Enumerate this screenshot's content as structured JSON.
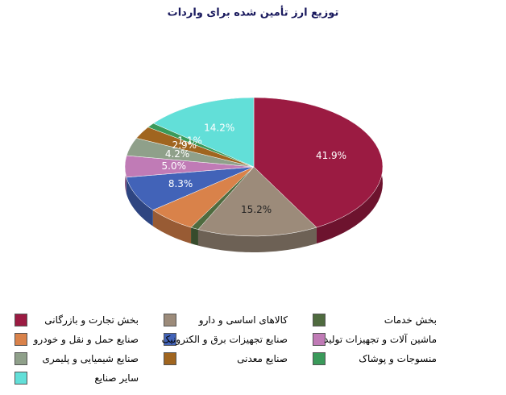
{
  "chart_data": {
    "type": "pie",
    "title": "توزیع ارز تأمین شده برای واردات",
    "categories": [
      "بخش تجارت و بازرگانی",
      "کالاهای اساسی و دارو",
      "بخش خدمات",
      "صنایع حمل و نقل و خودرو",
      "صنایع تجهیزات برق و الکترونیک",
      "ماشین آلات و تجهیزات تولید",
      "صنایع شیمیایی و پلیمری",
      "صنایع معدنی",
      "منسوجات و پوشاک",
      "سایر صنایع"
    ],
    "values": [
      41.9,
      15.2,
      1.0,
      6.2,
      8.3,
      5.0,
      4.2,
      2.9,
      1.1,
      14.2
    ],
    "value_labels": [
      "41.9%",
      "15.2%",
      null,
      null,
      "8.3%",
      "5.0%",
      "4.2%",
      "2.9%",
      "1.1%",
      "14.2%"
    ],
    "colors": [
      "#9b1b42",
      "#9c8b7a",
      "#4f6b3f",
      "#d9824a",
      "#4263b8",
      "#c07bb6",
      "#8fa08a",
      "#a0651f",
      "#3a9a5a",
      "#62dfd8"
    ]
  }
}
